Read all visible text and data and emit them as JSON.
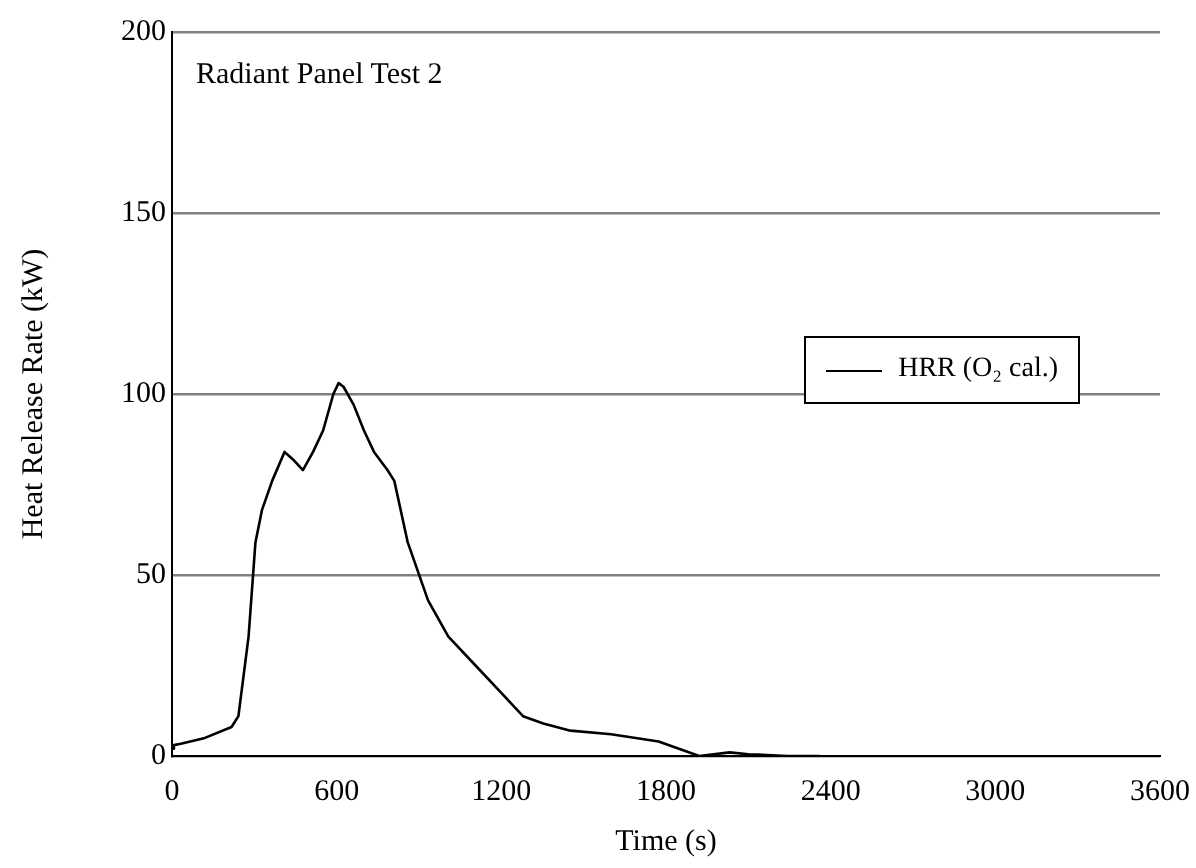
{
  "chart_data": {
    "type": "line",
    "xlabel": "Time (s)",
    "ylabel": "Heat Release Rate (kW)",
    "annotations": [
      "Radiant Panel Test 2"
    ],
    "x": [
      0,
      7,
      32,
      120,
      217,
      242,
      279,
      304,
      328,
      365,
      410,
      440,
      477,
      514,
      551,
      588,
      607,
      625,
      662,
      699,
      736,
      785,
      810,
      859,
      933,
      1007,
      1106,
      1205,
      1279,
      1353,
      1452,
      1600,
      1773,
      1921,
      2032,
      2100,
      2242,
      2328,
      2360
    ],
    "series": [
      {
        "name": "HRR (O₂ cal.)",
        "color": "#000000",
        "values": [
          2,
          3,
          3.4,
          5,
          8,
          11,
          33,
          59,
          68,
          76,
          84,
          82,
          79,
          84,
          90,
          100,
          103,
          102,
          97,
          90,
          84,
          79,
          76,
          59,
          43,
          33,
          25,
          17,
          11,
          9,
          7,
          6,
          4,
          0,
          1,
          0.5,
          0,
          0,
          0
        ]
      }
    ],
    "xlim": [
      0,
      3600
    ],
    "xticks": [
      0,
      600,
      1200,
      1800,
      2400,
      3000,
      3600
    ],
    "ylim": [
      0,
      200
    ],
    "yticks": [
      0,
      50,
      100,
      150,
      200
    ],
    "grid": "y",
    "legend": "right",
    "marker": "none",
    "line_style": "solid"
  }
}
